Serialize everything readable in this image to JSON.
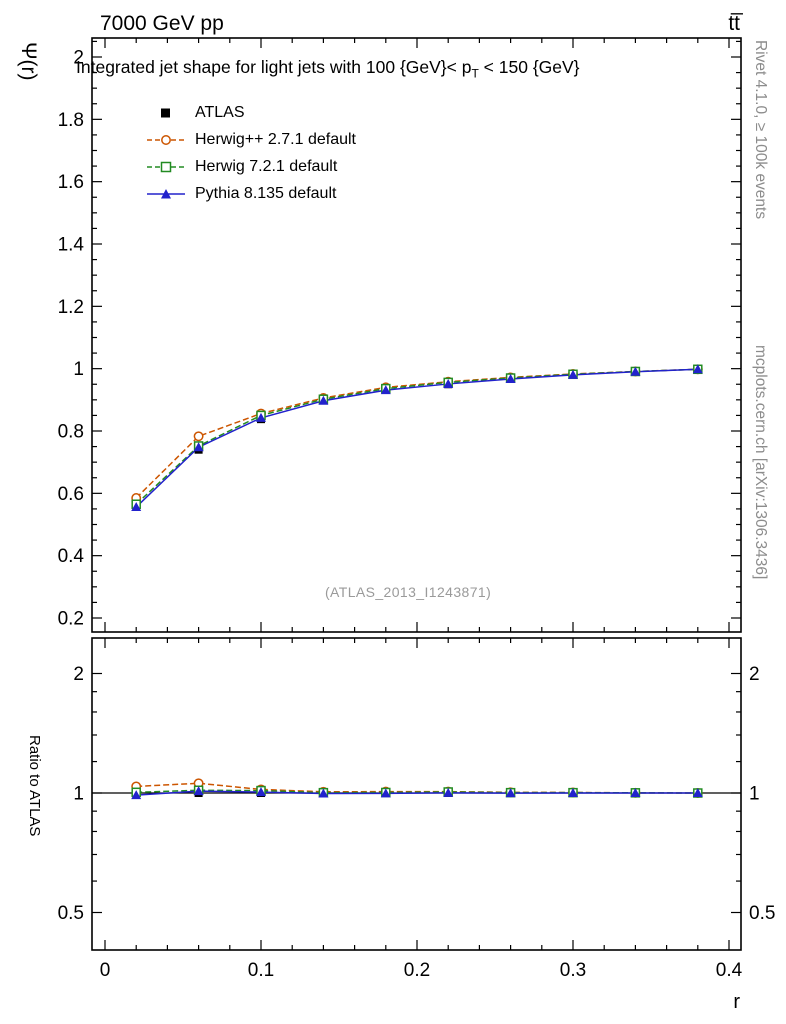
{
  "header": {
    "left": "7000 GeV pp",
    "right": "tt̅"
  },
  "main": {
    "title_pre": "Integrated jet shape for light jets with 100 {GeV}< p",
    "title_sub": "T",
    "title_post": " < 150 {GeV}",
    "ylabel": "Ψ(r)",
    "watermark": "(ATLAS_2013_I1243871)"
  },
  "ratio": {
    "ylabel": "Ratio to ATLAS"
  },
  "sidebar": {
    "top": "Rivet 4.1.0, ≥ 100k events",
    "bottom": "mcplots.cern.ch [arXiv:1306.3436]"
  },
  "xaxis": {
    "label": "r"
  },
  "chart_data": {
    "type": "line",
    "title": "Integrated jet shape for light jets with 100 {GeV}< pT < 150 {GeV}",
    "xlabel": "r",
    "ylabel": "Ψ(r)",
    "ratio_ylabel": "Ratio to ATLAS",
    "legend_position": "top-left",
    "grid": false,
    "x": [
      0.02,
      0.06,
      0.1,
      0.14,
      0.18,
      0.22,
      0.26,
      0.3,
      0.34,
      0.38
    ],
    "series": [
      {
        "name": "ATLAS",
        "marker": "square-filled",
        "line": "none",
        "color": "#000000",
        "values": [
          0.563,
          0.74,
          0.838,
          0.9,
          0.933,
          0.95,
          0.968,
          0.98,
          0.99,
          0.998
        ],
        "errors": [
          0.015,
          0.012,
          0.008,
          0.006,
          0.005,
          0.004,
          0.003,
          0.003,
          0.002,
          0.002
        ],
        "ratio": [
          1.0,
          1.0,
          1.0,
          1.0,
          1.0,
          1.0,
          1.0,
          1.0,
          1.0,
          1.0
        ]
      },
      {
        "name": "Herwig++ 2.7.1 default",
        "marker": "circle-open",
        "line": "dashed",
        "color": "#cc5500",
        "values": [
          0.585,
          0.783,
          0.856,
          0.906,
          0.94,
          0.958,
          0.972,
          0.983,
          0.991,
          0.998
        ],
        "ratio": [
          1.039,
          1.058,
          1.021,
          1.007,
          1.008,
          1.008,
          1.004,
          1.003,
          1.001,
          1.0
        ]
      },
      {
        "name": "Herwig 7.2.1 default",
        "marker": "square-open",
        "line": "dashed",
        "color": "#228b22",
        "values": [
          0.565,
          0.752,
          0.85,
          0.902,
          0.936,
          0.956,
          0.97,
          0.982,
          0.991,
          0.998
        ],
        "ratio": [
          1.004,
          1.016,
          1.014,
          1.002,
          1.003,
          1.006,
          1.002,
          1.002,
          1.001,
          1.0
        ]
      },
      {
        "name": "Pythia 8.135 default",
        "marker": "triangle-filled",
        "line": "solid",
        "color": "#2222cc",
        "values": [
          0.556,
          0.748,
          0.842,
          0.897,
          0.931,
          0.951,
          0.967,
          0.98,
          0.99,
          0.998
        ],
        "ratio": [
          0.988,
          1.011,
          1.005,
          0.997,
          0.998,
          1.001,
          0.999,
          1.0,
          1.0,
          1.0
        ]
      }
    ],
    "axes": {
      "x": {
        "min": 0,
        "max": 0.4,
        "majors": [
          0,
          0.1,
          0.2,
          0.3,
          0.4
        ],
        "labels": [
          "0",
          "0.1",
          "0.2",
          "0.3",
          "0.4"
        ],
        "minor_step": 0.02
      },
      "y_main": {
        "min": 0.15,
        "max": 2.07,
        "majors": [
          0.2,
          0.4,
          0.6,
          0.8,
          1.0,
          1.2,
          1.4,
          1.6,
          1.8,
          2.0
        ],
        "labels": [
          "0.2",
          "0.4",
          "0.6",
          "0.8",
          "1",
          "1.2",
          "1.4",
          "1.6",
          "1.8",
          "2"
        ],
        "minor_step": 0.05
      },
      "y_ratio": {
        "scale": "log",
        "min": 0.4,
        "max": 2.46,
        "majors": [
          0.5,
          1,
          2
        ],
        "labels": [
          "0.5",
          "1",
          "2"
        ],
        "minors": [
          0.6,
          0.7,
          0.8,
          0.9,
          1.2,
          1.4,
          1.6,
          1.8
        ]
      }
    },
    "ratio_reference": 1
  }
}
